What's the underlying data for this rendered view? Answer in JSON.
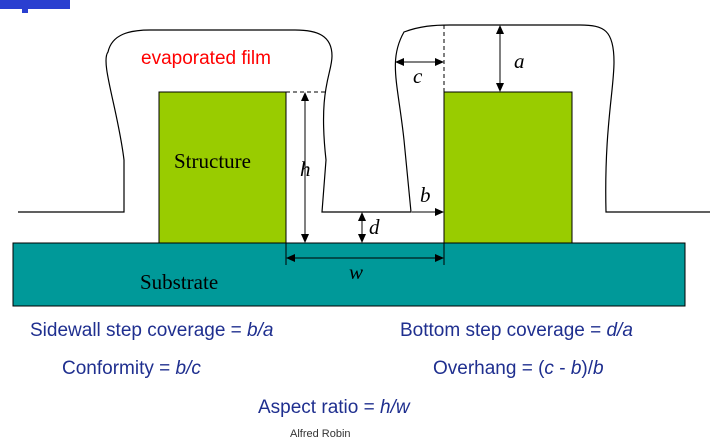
{
  "diagram": {
    "film_label": "evaporated film",
    "structure_label": "Structure",
    "substrate_label": "Substrate",
    "dims": {
      "a": "a",
      "b": "b",
      "c": "c",
      "d": "d",
      "h": "h",
      "w": "w"
    }
  },
  "equations": {
    "sidewall": {
      "label": "Sidewall step coverage = ",
      "expr": "b/a"
    },
    "bottom": {
      "label": "Bottom step coverage = ",
      "expr": "d/a"
    },
    "conformity": {
      "label": "Conformity = ",
      "expr": "b/c"
    },
    "overhang": {
      "label": "Overhang = (",
      "v1": "c",
      "mid": " - ",
      "v2": "b",
      "end": ")/",
      "v3": "b"
    },
    "aspect": {
      "label": "Aspect ratio = ",
      "expr": "h/w"
    }
  },
  "footer": "Alfred Robin",
  "colors": {
    "structure": "#99cc00",
    "substrate": "#009999",
    "film_label": "#ff0000",
    "equation_text": "#1f2f8f"
  }
}
